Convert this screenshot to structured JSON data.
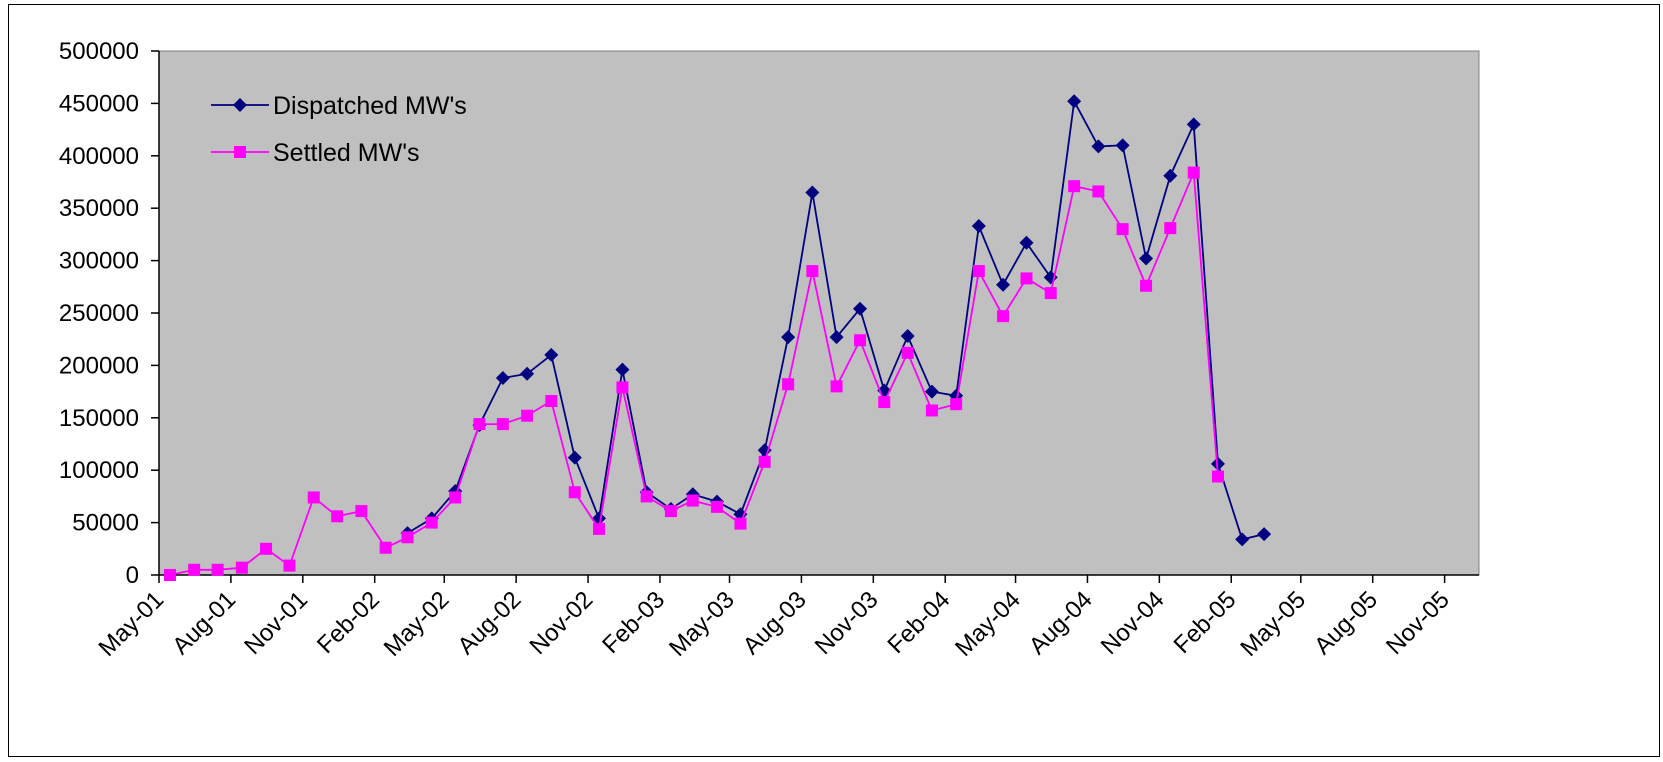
{
  "chart_data": {
    "type": "line",
    "title": "",
    "xlabel": "",
    "ylabel": "",
    "ylim": [
      0,
      500000
    ],
    "y_ticks": [
      "0",
      "50000",
      "100000",
      "150000",
      "200000",
      "250000",
      "300000",
      "350000",
      "400000",
      "450000",
      "500000"
    ],
    "x_ticks": [
      "May-01",
      "Aug-01",
      "Nov-01",
      "Feb-02",
      "May-02",
      "Aug-02",
      "Nov-02",
      "Feb-03",
      "May-03",
      "Aug-03",
      "Nov-03",
      "Feb-04",
      "May-04",
      "Aug-04",
      "Nov-04",
      "Feb-05",
      "May-05",
      "Aug-05",
      "Nov-05"
    ],
    "xlim": [
      "2001-05-01",
      "2005-12-15"
    ],
    "grid": false,
    "legend_position": "top-left",
    "plot_background": "#C0C0C0",
    "series": [
      {
        "name": "Dispatched MW's",
        "color": "#000080",
        "marker": "diamond",
        "points": [
          [
            "2002-03-15",
            40000
          ],
          [
            "2002-04-15",
            54000
          ],
          [
            "2002-05-15",
            80000
          ],
          [
            "2002-06-15",
            143000
          ],
          [
            "2002-07-15",
            188000
          ],
          [
            "2002-08-15",
            192000
          ],
          [
            "2002-09-15",
            210000
          ],
          [
            "2002-10-15",
            112000
          ],
          [
            "2002-11-15",
            54000
          ],
          [
            "2002-12-15",
            196000
          ],
          [
            "2003-01-15",
            79000
          ],
          [
            "2003-02-15",
            63000
          ],
          [
            "2003-03-15",
            77000
          ],
          [
            "2003-04-15",
            70000
          ],
          [
            "2003-05-15",
            58000
          ],
          [
            "2003-06-15",
            119000
          ],
          [
            "2003-07-15",
            227000
          ],
          [
            "2003-08-15",
            365000
          ],
          [
            "2003-09-15",
            227000
          ],
          [
            "2003-10-15",
            254000
          ],
          [
            "2003-11-15",
            176000
          ],
          [
            "2003-12-15",
            228000
          ],
          [
            "2004-01-15",
            175000
          ],
          [
            "2004-02-15",
            171000
          ],
          [
            "2004-03-15",
            333000
          ],
          [
            "2004-04-15",
            277000
          ],
          [
            "2004-05-15",
            317000
          ],
          [
            "2004-06-15",
            284000
          ],
          [
            "2004-07-15",
            452000
          ],
          [
            "2004-08-15",
            409000
          ],
          [
            "2004-09-15",
            410000
          ],
          [
            "2004-10-15",
            302000
          ],
          [
            "2004-11-15",
            381000
          ],
          [
            "2004-12-15",
            430000
          ],
          [
            "2005-01-15",
            106000
          ],
          [
            "2005-02-15",
            34000
          ],
          [
            "2005-03-15",
            39000
          ]
        ]
      },
      {
        "name": "Settled MW's",
        "color": "#FF00FF",
        "marker": "square",
        "points": [
          [
            "2001-05-15",
            0
          ],
          [
            "2001-06-15",
            5000
          ],
          [
            "2001-07-15",
            5000
          ],
          [
            "2001-08-15",
            7000
          ],
          [
            "2001-09-15",
            25000
          ],
          [
            "2001-10-15",
            9000
          ],
          [
            "2001-11-15",
            74000
          ],
          [
            "2001-12-15",
            56000
          ],
          [
            "2002-01-15",
            61000
          ],
          [
            "2002-02-15",
            26000
          ],
          [
            "2002-03-15",
            36000
          ],
          [
            "2002-04-15",
            50000
          ],
          [
            "2002-05-15",
            74000
          ],
          [
            "2002-06-15",
            144000
          ],
          [
            "2002-07-15",
            144000
          ],
          [
            "2002-08-15",
            152000
          ],
          [
            "2002-09-15",
            166000
          ],
          [
            "2002-10-15",
            79000
          ],
          [
            "2002-11-15",
            44000
          ],
          [
            "2002-12-15",
            179000
          ],
          [
            "2003-01-15",
            75000
          ],
          [
            "2003-02-15",
            61000
          ],
          [
            "2003-03-15",
            71000
          ],
          [
            "2003-04-15",
            65000
          ],
          [
            "2003-05-15",
            49000
          ],
          [
            "2003-06-15",
            108000
          ],
          [
            "2003-07-15",
            182000
          ],
          [
            "2003-08-15",
            290000
          ],
          [
            "2003-09-15",
            180000
          ],
          [
            "2003-10-15",
            224000
          ],
          [
            "2003-11-15",
            165000
          ],
          [
            "2003-12-15",
            212000
          ],
          [
            "2004-01-15",
            157000
          ],
          [
            "2004-02-15",
            163000
          ],
          [
            "2004-03-15",
            290000
          ],
          [
            "2004-04-15",
            247000
          ],
          [
            "2004-05-15",
            283000
          ],
          [
            "2004-06-15",
            269000
          ],
          [
            "2004-07-15",
            371000
          ],
          [
            "2004-08-15",
            366000
          ],
          [
            "2004-09-15",
            330000
          ],
          [
            "2004-10-15",
            276000
          ],
          [
            "2004-11-15",
            331000
          ],
          [
            "2004-12-15",
            384000
          ],
          [
            "2005-01-15",
            94000
          ]
        ]
      }
    ]
  }
}
